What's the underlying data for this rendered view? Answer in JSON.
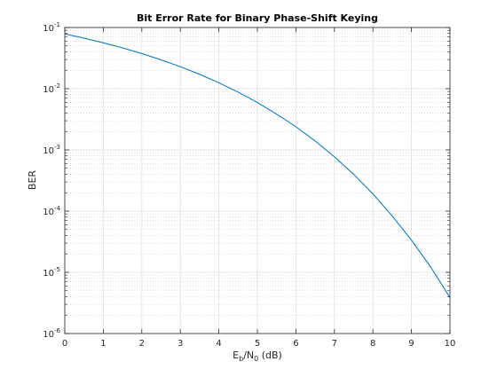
{
  "chart_data": {
    "type": "line",
    "title": "Bit Error Rate for Binary Phase-Shift Keying",
    "xlabel": {
      "base": "E",
      "sub1": "b",
      "mid": "/N",
      "sub2": "0",
      "tail": " (dB)"
    },
    "ylabel": "BER",
    "xlim": [
      0,
      10
    ],
    "ylim": [
      1e-06,
      0.1
    ],
    "yscale": "log",
    "grid": true,
    "minor_grid": true,
    "x_ticks": [
      0,
      1,
      2,
      3,
      4,
      5,
      6,
      7,
      8,
      9,
      10
    ],
    "x_tick_labels": [
      "0",
      "1",
      "2",
      "3",
      "4",
      "5",
      "6",
      "7",
      "8",
      "9",
      "10"
    ],
    "y_ticks": [
      {
        "value": 1e-06,
        "base": "10",
        "exp": "-6"
      },
      {
        "value": 1e-05,
        "base": "10",
        "exp": "-5"
      },
      {
        "value": 0.0001,
        "base": "10",
        "exp": "-4"
      },
      {
        "value": 0.001,
        "base": "10",
        "exp": "-3"
      },
      {
        "value": 0.01,
        "base": "10",
        "exp": "-2"
      },
      {
        "value": 0.1,
        "base": "10",
        "exp": "-1"
      }
    ],
    "line_color": "#0072bd",
    "series": [
      {
        "x": [
          0,
          0.5,
          1,
          1.5,
          2,
          2.5,
          3,
          3.5,
          4,
          4.5,
          5,
          5.5,
          6,
          6.5,
          7,
          7.5,
          8,
          8.5,
          9,
          9.5,
          10
        ],
        "y": [
          0.0786,
          0.0671,
          0.0563,
          0.0464,
          0.0375,
          0.0296,
          0.0229,
          0.0172,
          0.0125,
          0.00881,
          0.00595,
          0.00384,
          0.00239,
          0.0014,
          0.000773,
          0.0004,
          0.000191,
          8.34e-05,
          3.36e-05,
          1.22e-05,
          3.87e-06
        ]
      }
    ]
  }
}
